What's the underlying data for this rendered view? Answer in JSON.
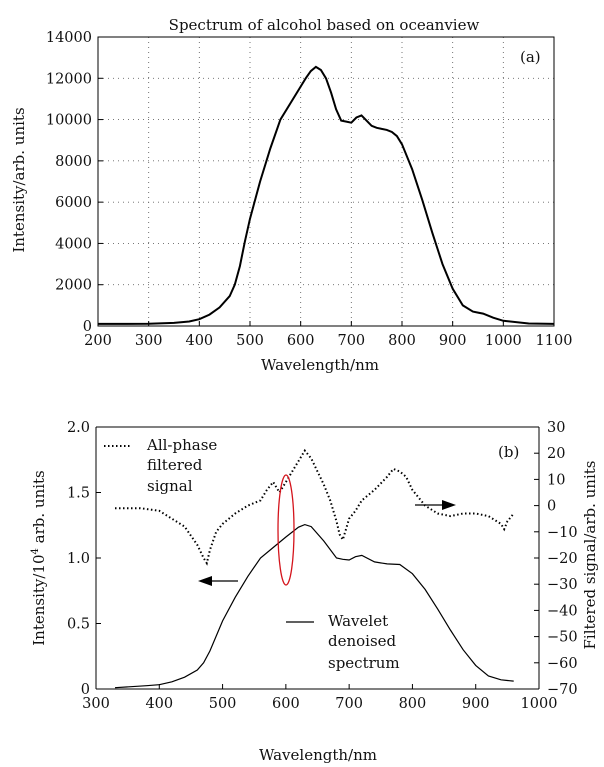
{
  "chart_data": [
    {
      "type": "line",
      "panel_label": "(a)",
      "title": "Spectrum of alcohol based on oceanview",
      "xlabel": "Wavelength/nm",
      "ylabel": "Intensity/arb. units",
      "xlim": [
        200,
        1100
      ],
      "ylim": [
        0,
        14000
      ],
      "xticks": [
        200,
        300,
        400,
        500,
        600,
        700,
        800,
        900,
        1000,
        1100
      ],
      "yticks": [
        0,
        2000,
        4000,
        6000,
        8000,
        10000,
        12000,
        14000
      ],
      "grid": true,
      "series": [
        {
          "color": "#000000",
          "x": [
            200,
            250,
            300,
            350,
            380,
            400,
            420,
            440,
            460,
            470,
            480,
            490,
            500,
            520,
            540,
            560,
            580,
            600,
            610,
            620,
            630,
            640,
            650,
            660,
            670,
            680,
            690,
            700,
            710,
            720,
            730,
            740,
            750,
            760,
            770,
            780,
            790,
            800,
            820,
            840,
            860,
            880,
            900,
            920,
            940,
            950,
            960,
            980,
            1000,
            1050,
            1100
          ],
          "y": [
            100,
            100,
            110,
            150,
            220,
            330,
            550,
            900,
            1450,
            2000,
            2900,
            4100,
            5200,
            7000,
            8600,
            10000,
            10800,
            11600,
            12000,
            12350,
            12550,
            12400,
            12000,
            11300,
            10500,
            9950,
            9900,
            9850,
            10100,
            10200,
            9950,
            9700,
            9600,
            9550,
            9500,
            9400,
            9200,
            8800,
            7600,
            6100,
            4500,
            3000,
            1800,
            1000,
            700,
            650,
            600,
            400,
            250,
            120,
            100
          ]
        }
      ]
    },
    {
      "type": "line",
      "panel_label": "(b)",
      "xlabel": "Wavelength/nm",
      "ylabel": "Intensity/10^4 arb. units",
      "ylabel_right": "Filtered signal/arb. units",
      "xlim": [
        300,
        1000
      ],
      "ylim": [
        0,
        2.0
      ],
      "ylim_right": [
        -70,
        30
      ],
      "xticks": [
        300,
        400,
        500,
        600,
        700,
        800,
        900,
        1000
      ],
      "yticks": [
        0,
        0.5,
        1.0,
        1.5,
        2.0
      ],
      "yticks_right": [
        -70,
        -60,
        -50,
        -40,
        -30,
        -20,
        -10,
        0,
        10,
        20,
        30
      ],
      "grid": false,
      "legend": [
        {
          "label_lines": [
            "All-phase",
            "filtered",
            "signal"
          ],
          "style": "dotted"
        },
        {
          "label_lines": [
            "Wavelet",
            "denoised",
            "spectrum"
          ],
          "style": "solid"
        }
      ],
      "annotations": [
        "red ellipse near 690 nm",
        "arrow pointing left to left axis",
        "arrow pointing right to right axis"
      ],
      "series": [
        {
          "axis": "left",
          "style": "solid",
          "color": "#000000",
          "x": [
            330,
            380,
            400,
            420,
            440,
            460,
            470,
            480,
            500,
            520,
            540,
            560,
            580,
            600,
            620,
            630,
            640,
            660,
            680,
            690,
            700,
            710,
            720,
            740,
            760,
            780,
            800,
            820,
            840,
            860,
            880,
            900,
            920,
            940,
            950,
            960
          ],
          "y": [
            0.01,
            0.025,
            0.033,
            0.055,
            0.09,
            0.145,
            0.2,
            0.29,
            0.52,
            0.7,
            0.86,
            1.0,
            1.08,
            1.16,
            1.235,
            1.255,
            1.24,
            1.13,
            1.0,
            0.99,
            0.985,
            1.01,
            1.02,
            0.97,
            0.955,
            0.95,
            0.88,
            0.76,
            0.61,
            0.45,
            0.3,
            0.18,
            0.1,
            0.07,
            0.065,
            0.06
          ]
        },
        {
          "axis": "right",
          "style": "dotted",
          "color": "#000000",
          "x": [
            330,
            370,
            400,
            420,
            440,
            460,
            470,
            475,
            480,
            490,
            500,
            520,
            540,
            560,
            570,
            580,
            590,
            600,
            610,
            620,
            630,
            640,
            650,
            660,
            670,
            680,
            685,
            690,
            695,
            700,
            710,
            720,
            740,
            760,
            770,
            780,
            790,
            800,
            820,
            840,
            860,
            880,
            900,
            920,
            940,
            945,
            950,
            960
          ],
          "y": [
            -1,
            -1,
            -2,
            -5,
            -8,
            -15,
            -20,
            -22,
            -17,
            -10,
            -7,
            -3,
            0,
            2,
            6,
            9,
            5,
            9,
            13,
            17,
            21,
            18,
            13,
            8,
            2,
            -6,
            -11,
            -13,
            -9,
            -5,
            -2,
            2,
            6,
            11,
            14,
            13,
            11,
            6,
            0,
            -3,
            -4,
            -3,
            -3,
            -4,
            -7,
            -9,
            -6,
            -3
          ]
        }
      ]
    }
  ]
}
